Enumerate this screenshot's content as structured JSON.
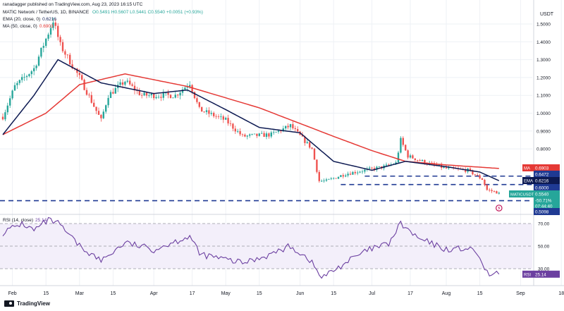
{
  "header": {
    "author": "ranadagger published on TradingView.com, Aug 23, 2023 16:15 UTC",
    "symbol": "MATIC Network / TetherUS, 1D, BINANCE",
    "ohlc": "O0.5491 H0.5607 L0.5441 C0.5540 +0.0051 (+0.93%)",
    "ema": "EMA (20, close, 0)",
    "ema_value": "0.6216",
    "ma": "MA (50, close, 0)",
    "ma_value": "0.6903",
    "rsi": "RSI (14, close)",
    "rsi_value": "25.14"
  },
  "footer": {
    "brand": "TradingView"
  },
  "colors": {
    "up": "#26a69a",
    "down": "#ef5350",
    "ema": "#0d1a52",
    "ma": "#e53935",
    "rsi": "#6b3fa0",
    "level": "#1f3a93",
    "grid": "#eef1f5"
  },
  "chart_data": [
    {
      "type": "candlestick",
      "title": "MATIC Network / TetherUS, 1D, BINANCE",
      "currency_label": "USDT",
      "ylim": [
        0.575,
        1.57
      ],
      "yticks": [
        "1.5000",
        "1.4000",
        "1.3000",
        "1.2000",
        "1.1000",
        "1.0000",
        "0.9000",
        "0.8000"
      ],
      "x_ticks": [
        "Feb",
        "15",
        "Mar",
        "15",
        "Apr",
        "17",
        "May",
        "15",
        "Jun",
        "15",
        "Jul",
        "17",
        "Aug",
        "15",
        "Sep",
        "18"
      ],
      "close_anchors": [
        [
          "2023-01-28",
          0.98
        ],
        [
          "2023-02-02",
          1.15
        ],
        [
          "2023-02-10",
          1.25
        ],
        [
          "2023-02-16",
          1.45
        ],
        [
          "2023-02-18",
          1.52
        ],
        [
          "2023-02-21",
          1.38
        ],
        [
          "2023-03-01",
          1.2
        ],
        [
          "2023-03-10",
          0.96
        ],
        [
          "2023-03-13",
          1.1
        ],
        [
          "2023-03-20",
          1.18
        ],
        [
          "2023-03-27",
          1.1
        ],
        [
          "2023-04-10",
          1.1
        ],
        [
          "2023-04-16",
          1.17
        ],
        [
          "2023-04-20",
          1.02
        ],
        [
          "2023-05-01",
          0.96
        ],
        [
          "2023-05-08",
          0.87
        ],
        [
          "2023-05-20",
          0.88
        ],
        [
          "2023-05-28",
          0.93
        ],
        [
          "2023-06-06",
          0.8
        ],
        [
          "2023-06-09",
          0.62
        ],
        [
          "2023-06-12",
          0.62
        ],
        [
          "2023-06-20",
          0.66
        ],
        [
          "2023-06-28",
          0.68
        ],
        [
          "2023-07-06",
          0.7
        ],
        [
          "2023-07-11",
          0.72
        ],
        [
          "2023-07-13",
          0.85
        ],
        [
          "2023-07-16",
          0.76
        ],
        [
          "2023-07-24",
          0.72
        ],
        [
          "2023-08-01",
          0.69
        ],
        [
          "2023-08-10",
          0.68
        ],
        [
          "2023-08-16",
          0.63
        ],
        [
          "2023-08-18",
          0.57
        ],
        [
          "2023-08-23",
          0.554
        ]
      ],
      "ema_anchors": [
        [
          "2023-01-28",
          0.88
        ],
        [
          "2023-02-10",
          1.1
        ],
        [
          "2023-02-20",
          1.3
        ],
        [
          "2023-03-10",
          1.17
        ],
        [
          "2023-04-01",
          1.11
        ],
        [
          "2023-04-15",
          1.13
        ],
        [
          "2023-05-01",
          1.02
        ],
        [
          "2023-05-15",
          0.92
        ],
        [
          "2023-06-01",
          0.89
        ],
        [
          "2023-06-15",
          0.73
        ],
        [
          "2023-07-01",
          0.68
        ],
        [
          "2023-07-15",
          0.73
        ],
        [
          "2023-08-01",
          0.7
        ],
        [
          "2023-08-15",
          0.67
        ],
        [
          "2023-08-23",
          0.6216
        ]
      ],
      "ma_anchors": [
        [
          "2023-01-28",
          0.88
        ],
        [
          "2023-02-15",
          1.0
        ],
        [
          "2023-03-01",
          1.16
        ],
        [
          "2023-03-20",
          1.22
        ],
        [
          "2023-04-15",
          1.15
        ],
        [
          "2023-05-15",
          1.03
        ],
        [
          "2023-06-15",
          0.87
        ],
        [
          "2023-07-01",
          0.79
        ],
        [
          "2023-07-15",
          0.73
        ],
        [
          "2023-08-01",
          0.71
        ],
        [
          "2023-08-23",
          0.6903
        ]
      ],
      "horizontal_levels": [
        0.6472,
        0.6,
        0.5098
      ],
      "price_labels": [
        {
          "text": "MA",
          "value": "0.6903"
        },
        {
          "text": "",
          "value": "0.6472"
        },
        {
          "text": "EMA",
          "value": "0.6216"
        },
        {
          "text": "",
          "value": "0.6000"
        },
        {
          "text": "MATICUSDT",
          "value": "0.5540"
        },
        {
          "text": "",
          "value": "-50.71%"
        },
        {
          "text": "",
          "value": "07:44:40"
        },
        {
          "text": "",
          "value": "0.5098"
        }
      ]
    },
    {
      "type": "line",
      "title": "RSI (14, close)",
      "ylim": [
        13,
        78
      ],
      "yticks": [
        "70.00",
        "50.00",
        "30.00"
      ],
      "levels": [
        70,
        50,
        30
      ],
      "anchors": [
        [
          "2023-01-28",
          62
        ],
        [
          "2023-02-05",
          70
        ],
        [
          "2023-02-10",
          64
        ],
        [
          "2023-02-16",
          73
        ],
        [
          "2023-02-20",
          70
        ],
        [
          "2023-03-01",
          50
        ],
        [
          "2023-03-10",
          37
        ],
        [
          "2023-03-20",
          53
        ],
        [
          "2023-04-01",
          47
        ],
        [
          "2023-04-16",
          59
        ],
        [
          "2023-04-20",
          43
        ],
        [
          "2023-05-08",
          35
        ],
        [
          "2023-05-20",
          43
        ],
        [
          "2023-05-28",
          50
        ],
        [
          "2023-06-05",
          38
        ],
        [
          "2023-06-10",
          22
        ],
        [
          "2023-06-14",
          27
        ],
        [
          "2023-06-22",
          38
        ],
        [
          "2023-06-30",
          47
        ],
        [
          "2023-07-08",
          52
        ],
        [
          "2023-07-13",
          70
        ],
        [
          "2023-07-20",
          57
        ],
        [
          "2023-08-01",
          47
        ],
        [
          "2023-08-10",
          48
        ],
        [
          "2023-08-15",
          41
        ],
        [
          "2023-08-17",
          27
        ],
        [
          "2023-08-20",
          24
        ],
        [
          "2023-08-23",
          25.14
        ]
      ]
    }
  ]
}
